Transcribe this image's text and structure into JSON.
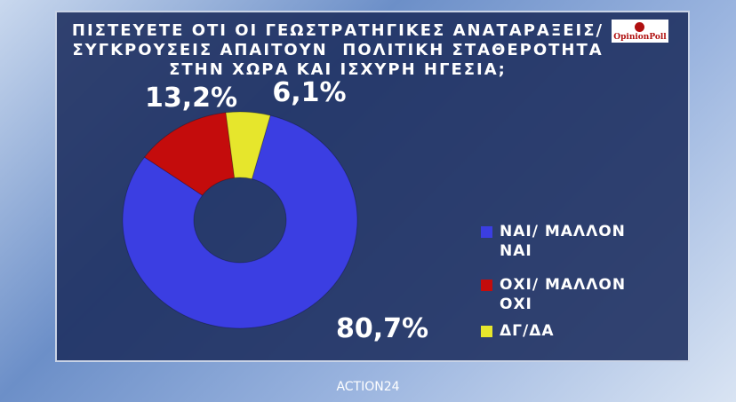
{
  "chart_data": {
    "type": "donut",
    "title": [
      "ΠΙΣΤΕΥΕΤΕ ΟΤΙ ΟΙ ΓΕΩΣΤΡΑΤΗΓΙΚΕΣ ΑΝΑΤΑΡΑΞΕΙΣ/",
      "ΣΥΓΚΡΟΥΣΕΙΣ ΑΠΑΙΤΟΥΝ  ΠΟΛΙΤΙΚΗ ΣΤΑΘΕΡΟΤΗΤΑ",
      "ΣΤΗΝ ΧΩΡΑ ΚΑΙ ΙΣΧΥΡΗ ΗΓΕΣΙΑ;"
    ],
    "categories": [
      "ΝΑΙ/ ΜΑΛΛΟΝ ΝΑΙ",
      "ΟΧΙ/ ΜΑΛΛΟΝ ΟΧΙ",
      "ΔΓ/ΔΑ"
    ],
    "values": [
      80.7,
      13.2,
      6.1
    ],
    "value_labels": [
      "80,7%",
      "13,2%",
      "6,1%"
    ],
    "colors": [
      "#3b3ee2",
      "#c40c0c",
      "#e6e62c"
    ]
  },
  "logo": "OpinionPoll",
  "channel": "ACTION24"
}
